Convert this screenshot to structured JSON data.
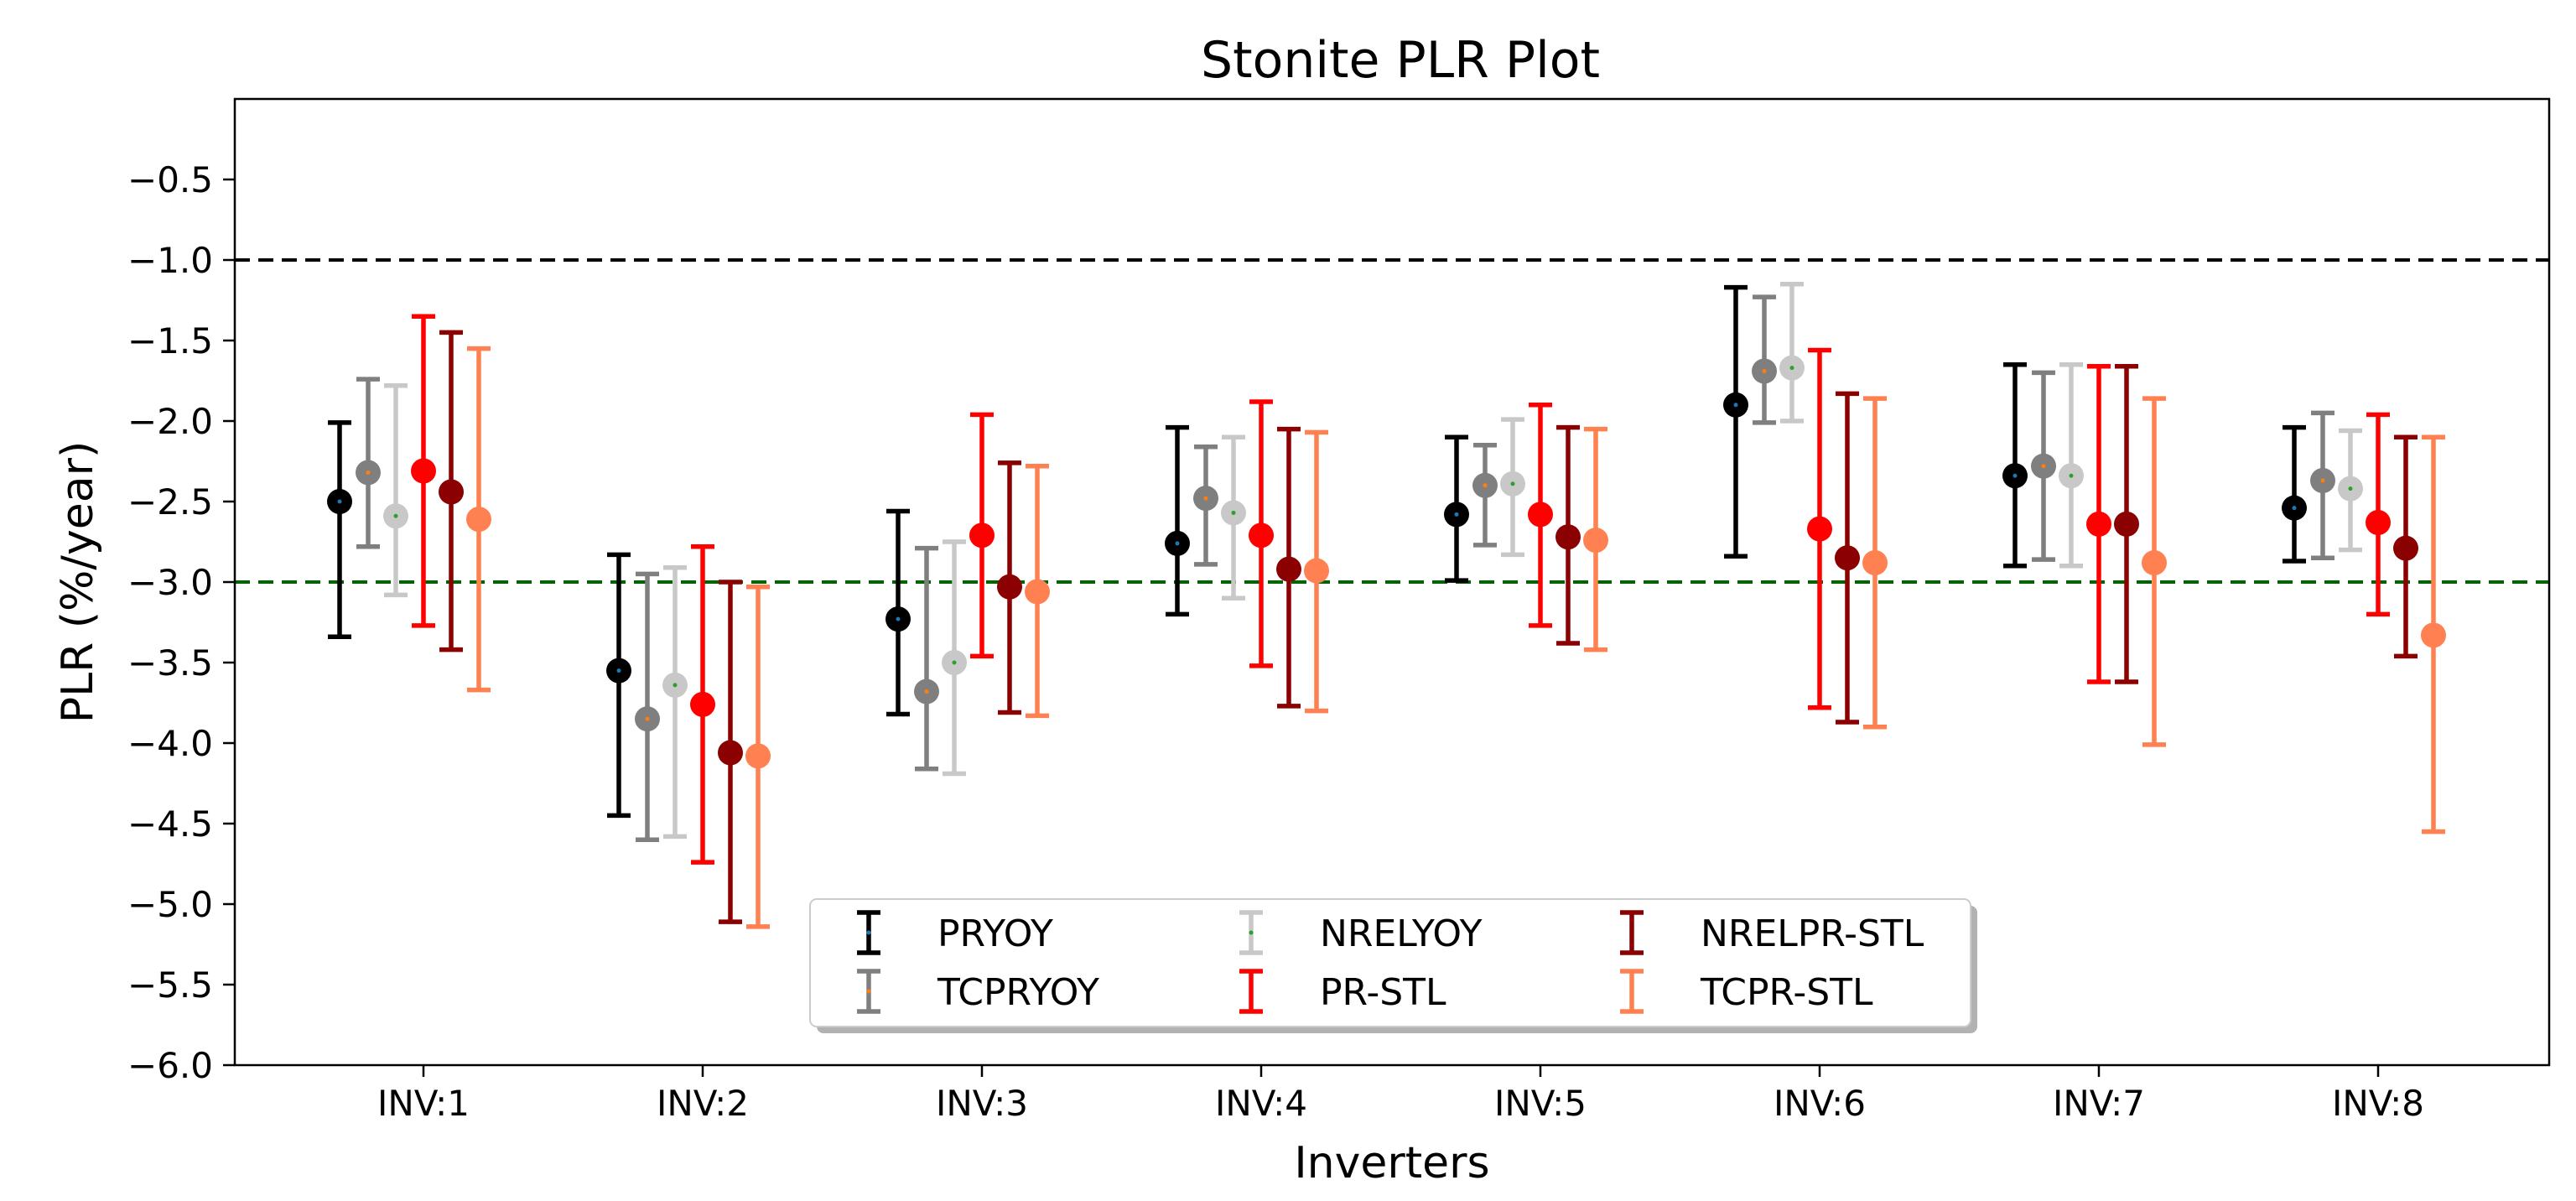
{
  "chart_data": {
    "type": "scatter",
    "subtype": "errorbar",
    "title": "Stonite PLR Plot",
    "xlabel": "Inverters",
    "ylabel": "PLR (%/year)",
    "categories": [
      "INV:1",
      "INV:2",
      "INV:3",
      "INV:4",
      "INV:5",
      "INV:6",
      "INV:7",
      "INV:8"
    ],
    "ylim": [
      -6.0,
      0.0
    ],
    "yticks": [
      -6.0,
      -5.5,
      -5.0,
      -4.5,
      -4.0,
      -3.5,
      -3.0,
      -2.5,
      -2.0,
      -1.5,
      -1.0,
      -0.5
    ],
    "ytick_labels": [
      "−6.0",
      "−5.5",
      "−5.0",
      "−4.5",
      "−4.0",
      "−3.5",
      "−3.0",
      "−2.5",
      "−2.0",
      "−1.5",
      "−1.0",
      "−0.5"
    ],
    "reference_lines": [
      {
        "y": -1.0,
        "color": "#000000",
        "style": "dashed"
      },
      {
        "y": -3.0,
        "color": "#006400",
        "style": "dashed"
      }
    ],
    "legend_position": "lower-center",
    "series": [
      {
        "name": "PRYOY",
        "color": "#000000",
        "center_color": "#1f77b4",
        "values": [
          -2.5,
          -3.55,
          -3.23,
          -2.76,
          -2.58,
          -1.9,
          -2.34,
          -2.54
        ],
        "lower": [
          -3.34,
          -4.45,
          -3.82,
          -3.2,
          -2.99,
          -2.84,
          -2.9,
          -2.87
        ],
        "upper": [
          -2.01,
          -2.83,
          -2.56,
          -2.04,
          -2.1,
          -1.17,
          -1.65,
          -2.04
        ]
      },
      {
        "name": "TCPRYOY",
        "color": "#7f7f7f",
        "center_color": "#ff7f0e",
        "values": [
          -2.32,
          -3.85,
          -3.68,
          -2.48,
          -2.4,
          -1.69,
          -2.28,
          -2.37
        ],
        "lower": [
          -2.78,
          -4.6,
          -4.16,
          -2.89,
          -2.77,
          -2.01,
          -2.86,
          -2.85
        ],
        "upper": [
          -1.74,
          -2.95,
          -2.79,
          -2.16,
          -2.15,
          -1.23,
          -1.7,
          -1.95
        ]
      },
      {
        "name": "NRELYOY",
        "color": "#c8c8c8",
        "center_color": "#2ca02c",
        "values": [
          -2.59,
          -3.64,
          -3.5,
          -2.57,
          -2.39,
          -1.67,
          -2.34,
          -2.42
        ],
        "lower": [
          -3.08,
          -4.58,
          -4.19,
          -3.1,
          -2.83,
          -2.0,
          -2.9,
          -2.8
        ],
        "upper": [
          -1.78,
          -2.91,
          -2.75,
          -2.1,
          -1.99,
          -1.15,
          -1.65,
          -2.06
        ]
      },
      {
        "name": "PR-STL",
        "color": "#ff0000",
        "center_color": "#ff0000",
        "values": [
          -2.31,
          -3.76,
          -2.71,
          -2.71,
          -2.58,
          -2.67,
          -2.64,
          -2.63
        ],
        "lower": [
          -3.27,
          -4.74,
          -3.46,
          -3.52,
          -3.27,
          -3.78,
          -3.62,
          -3.2
        ],
        "upper": [
          -1.35,
          -2.78,
          -1.96,
          -1.88,
          -1.9,
          -1.56,
          -1.66,
          -1.96
        ]
      },
      {
        "name": "NRELPR-STL",
        "color": "#8b0000",
        "center_color": "#8b0000",
        "values": [
          -2.44,
          -4.06,
          -3.03,
          -2.92,
          -2.72,
          -2.85,
          -2.64,
          -2.79
        ],
        "lower": [
          -3.42,
          -5.11,
          -3.81,
          -3.77,
          -3.38,
          -3.87,
          -3.62,
          -3.46
        ],
        "upper": [
          -1.45,
          -3.0,
          -2.26,
          -2.05,
          -2.04,
          -1.83,
          -1.66,
          -2.1
        ]
      },
      {
        "name": "TCPR-STL",
        "color": "#ff8050",
        "center_color": "#ff8050",
        "values": [
          -2.61,
          -4.08,
          -3.06,
          -2.93,
          -2.74,
          -2.88,
          -2.88,
          -3.33
        ],
        "lower": [
          -3.67,
          -5.14,
          -3.83,
          -3.8,
          -3.42,
          -3.9,
          -4.01,
          -4.55
        ],
        "upper": [
          -1.55,
          -3.03,
          -2.28,
          -2.07,
          -2.05,
          -1.86,
          -1.86,
          -2.1
        ]
      }
    ]
  }
}
